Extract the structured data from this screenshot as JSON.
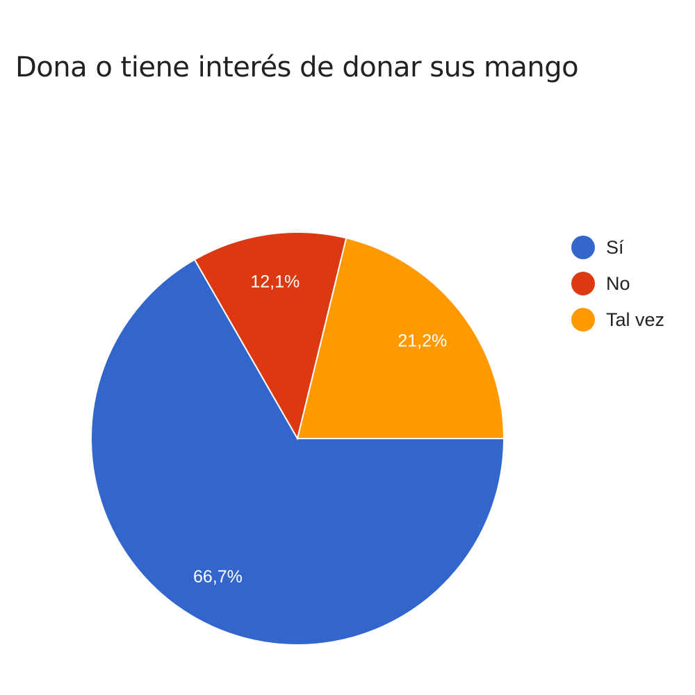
{
  "chart_data": {
    "type": "pie",
    "title": "Dona o tiene interés de donar sus mango",
    "categories": [
      "Sí",
      "No",
      "Tal vez"
    ],
    "values": [
      66.7,
      12.1,
      21.2
    ],
    "labels": [
      "66,7%",
      "12,1%",
      "21,2%"
    ],
    "colors": [
      "#3366cc",
      "#dc3912",
      "#ff9900"
    ],
    "legend_position": "right"
  }
}
